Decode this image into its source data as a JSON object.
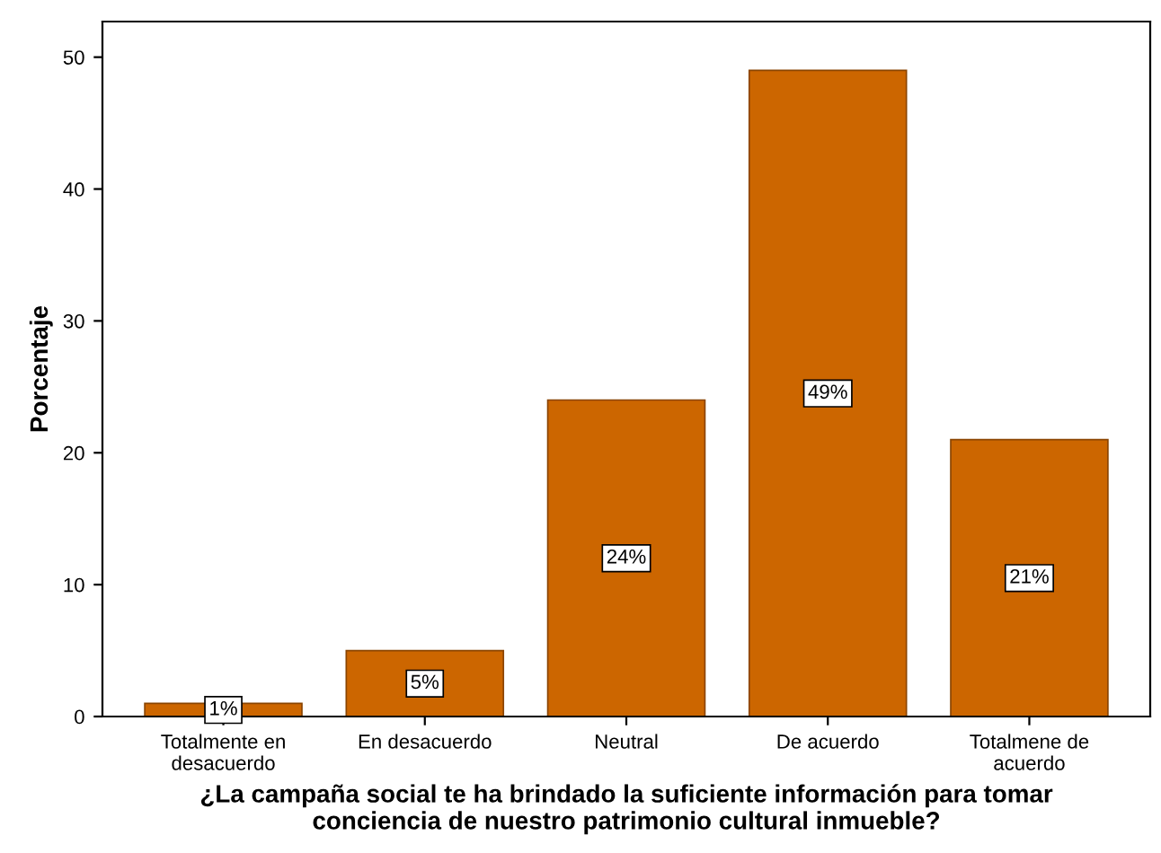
{
  "chart_data": {
    "type": "bar",
    "categories": [
      "Totalmente en\ndesacuerdo",
      "En desacuerdo",
      "Neutral",
      "De acuerdo",
      "Totalmene de\nacuerdo"
    ],
    "values": [
      1,
      5,
      24,
      49,
      21
    ],
    "value_labels": [
      "1%",
      "5%",
      "24%",
      "49%",
      "21%"
    ],
    "color": "#cc6600",
    "xlabel": "¿La campaña social te ha brindado la suficiente información para tomar\nconciencia de nuestro patrimonio cultural inmueble?",
    "ylabel": "Porcentaje",
    "ylim": [
      0,
      52.7
    ],
    "yticks": [
      0,
      10,
      20,
      30,
      40,
      50
    ],
    "grid": false,
    "legend": false
  }
}
